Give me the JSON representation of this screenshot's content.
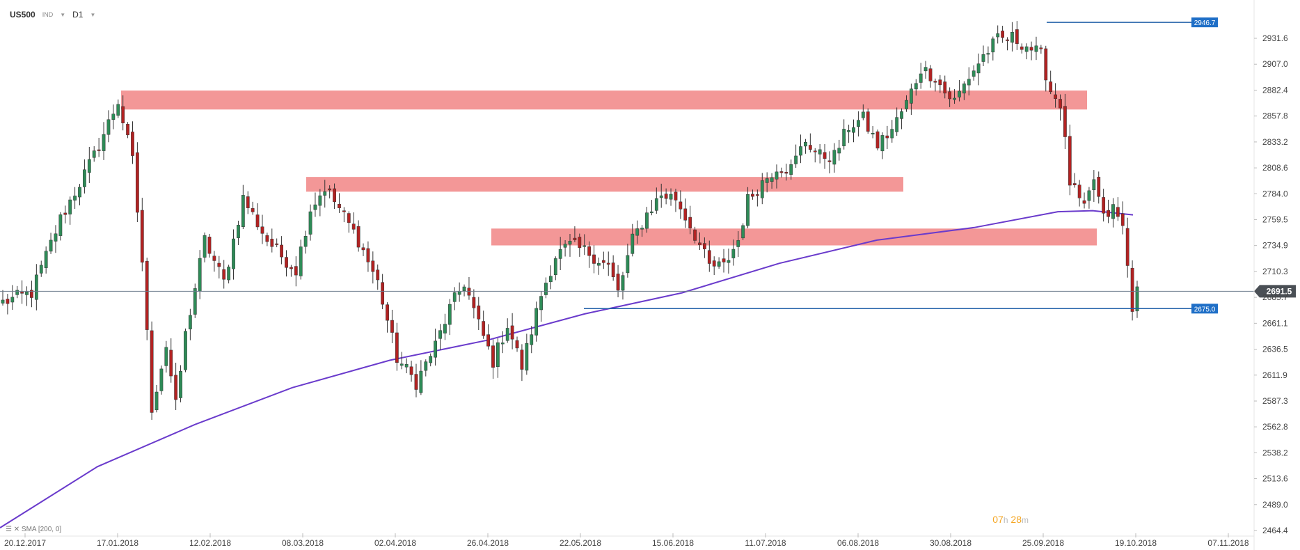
{
  "header": {
    "symbol": "US500",
    "instrument_type": "IND",
    "timeframe": "D1"
  },
  "indicator": {
    "label": "SMA",
    "params": "[200, 0]"
  },
  "countdown": {
    "hours": "07",
    "h_unit": "h",
    "minutes": "28",
    "m_unit": "m"
  },
  "colors": {
    "bull": "#2e8b57",
    "bear": "#b22222",
    "sma": "#6a3bcc",
    "zone": "#f08080",
    "level_line": "#1f5fa8",
    "price_line": "#6b7b8c",
    "price_badge": "#4a4f55",
    "level_badge": "#1f6fc7"
  },
  "chart_data": {
    "type": "candlestick",
    "y_ticks": [
      "2931.6",
      "2907.0",
      "2882.4",
      "2857.8",
      "2833.2",
      "2808.6",
      "2784.0",
      "2759.5",
      "2734.9",
      "2710.3",
      "2685.7",
      "2661.1",
      "2636.5",
      "2611.9",
      "2587.3",
      "2562.8",
      "2538.2",
      "2513.6",
      "2489.0",
      "2464.4"
    ],
    "ylim": [
      2464.4,
      2931.6
    ],
    "x_ticks": [
      "20.12.2017",
      "17.01.2018",
      "12.02.2018",
      "08.03.2018",
      "02.04.2018",
      "26.04.2018",
      "22.05.2018",
      "15.06.2018",
      "11.07.2018",
      "06.08.2018",
      "30.08.2018",
      "25.09.2018",
      "19.10.2018",
      "07.11.2018"
    ],
    "current_price": "2691.5",
    "levels": [
      {
        "label": "2946.7",
        "value": 2946.7,
        "start_date": "25.09.2018"
      },
      {
        "label": "2675.0",
        "value": 2675.0,
        "start_date": "22.05.2018"
      }
    ],
    "zones": [
      {
        "low": 2864,
        "high": 2882,
        "start_date": "17.01.2018"
      },
      {
        "low": 2786,
        "high": 2800,
        "start_date": "08.03.2018"
      },
      {
        "low": 2735,
        "high": 2751,
        "start_date": "26.04.2018"
      }
    ],
    "series": [
      {
        "name": "SMA",
        "params": "[200, 0]",
        "role": "moving_average"
      },
      {
        "name": "US500",
        "role": "price"
      }
    ]
  }
}
